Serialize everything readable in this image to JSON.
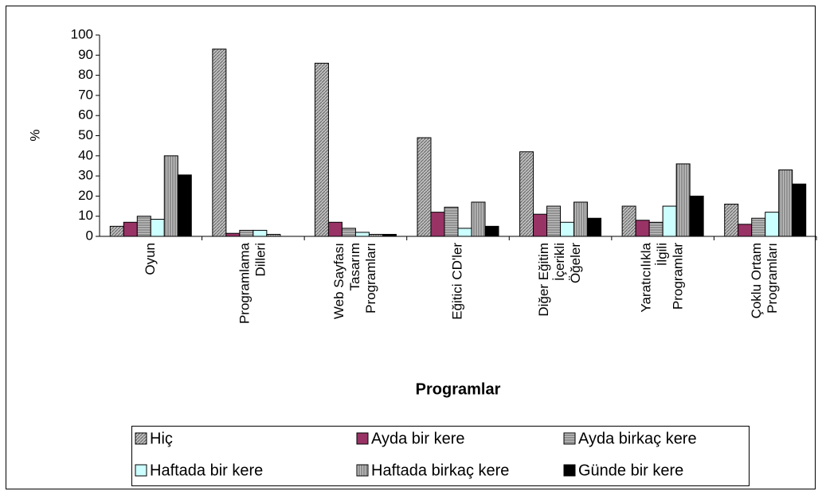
{
  "chart_data": {
    "type": "bar",
    "ylabel": "%",
    "xlabel": "Programlar",
    "categories": [
      [
        "Oyun"
      ],
      [
        "Programlama",
        "Dilleri"
      ],
      [
        "Web Sayfası",
        "Tasarım",
        "Programları"
      ],
      [
        "Eğitici CD'ler"
      ],
      [
        "Diğer Eğitim",
        "İçerikli",
        "Öğeler"
      ],
      [
        "Yaratıcılıkla",
        "İlgili",
        "Programlar"
      ],
      [
        "Çoklu Ortam",
        "Programları"
      ]
    ],
    "series": [
      {
        "name": "Hiç",
        "color": "#c0c0c0",
        "pattern": "diagonal",
        "values": [
          5,
          93,
          86,
          49,
          42,
          15,
          16
        ]
      },
      {
        "name": "Ayda bir kere",
        "color": "#993366",
        "pattern": "none",
        "values": [
          7,
          1.5,
          7,
          12,
          11,
          8,
          6
        ]
      },
      {
        "name": "Ayda birkaç kere",
        "color": "#c0c0c0",
        "pattern": "horizontal",
        "values": [
          10,
          3,
          4,
          14.5,
          15,
          7,
          9
        ]
      },
      {
        "name": "Haftada bir kere",
        "color": "#ccffff",
        "pattern": "none",
        "values": [
          8.5,
          3,
          2,
          4,
          7,
          15,
          12
        ]
      },
      {
        "name": "Haftada birkaç kere",
        "color": "#c0c0c0",
        "pattern": "vertical",
        "values": [
          40,
          1,
          1,
          17,
          17,
          36,
          33
        ]
      },
      {
        "name": "Günde bir kere",
        "color": "#000000",
        "pattern": "none",
        "values": [
          30.5,
          0,
          1,
          5,
          9,
          20,
          26
        ]
      }
    ],
    "ylim": [
      0,
      100
    ],
    "yticks": [
      0,
      10,
      20,
      30,
      40,
      50,
      60,
      70,
      80,
      90,
      100
    ],
    "grid": false,
    "legend": "bottom"
  }
}
